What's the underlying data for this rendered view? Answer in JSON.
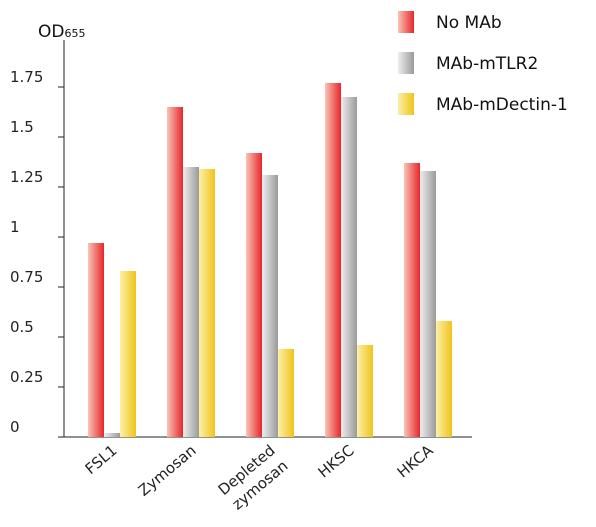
{
  "chart_data": {
    "type": "bar",
    "ylabel_main": "OD",
    "ylabel_sub": "655",
    "categories": [
      [
        "FSL1"
      ],
      [
        "Zymosan"
      ],
      [
        "Depleted",
        "zymosan"
      ],
      [
        "HKSC"
      ],
      [
        "HKCA"
      ]
    ],
    "series": [
      {
        "name": "No MAb",
        "values": [
          0.97,
          1.65,
          1.42,
          1.77,
          1.37
        ],
        "color": "#e8262b",
        "color_light": "#f9c4b5"
      },
      {
        "name": "MAb-mTLR2",
        "values": [
          0.02,
          1.35,
          1.31,
          1.7,
          1.33
        ],
        "color": "#9a9a9a",
        "color_light": "#eeeeee"
      },
      {
        "name": "MAb-mDectin-1",
        "values": [
          0.83,
          1.34,
          0.44,
          0.46,
          0.58
        ],
        "color": "#f0c419",
        "color_light": "#fbf0a8"
      }
    ],
    "yticks": [
      0,
      0.25,
      0.5,
      0.75,
      1,
      1.25,
      1.5,
      1.75
    ],
    "ytick_labels": [
      "0",
      "0.25",
      "0.5",
      "0.75",
      "1",
      "1.25",
      "1.5",
      "1.75"
    ],
    "ylim": [
      0,
      2.0
    ],
    "legend_position": "top-right",
    "grid": false
  }
}
